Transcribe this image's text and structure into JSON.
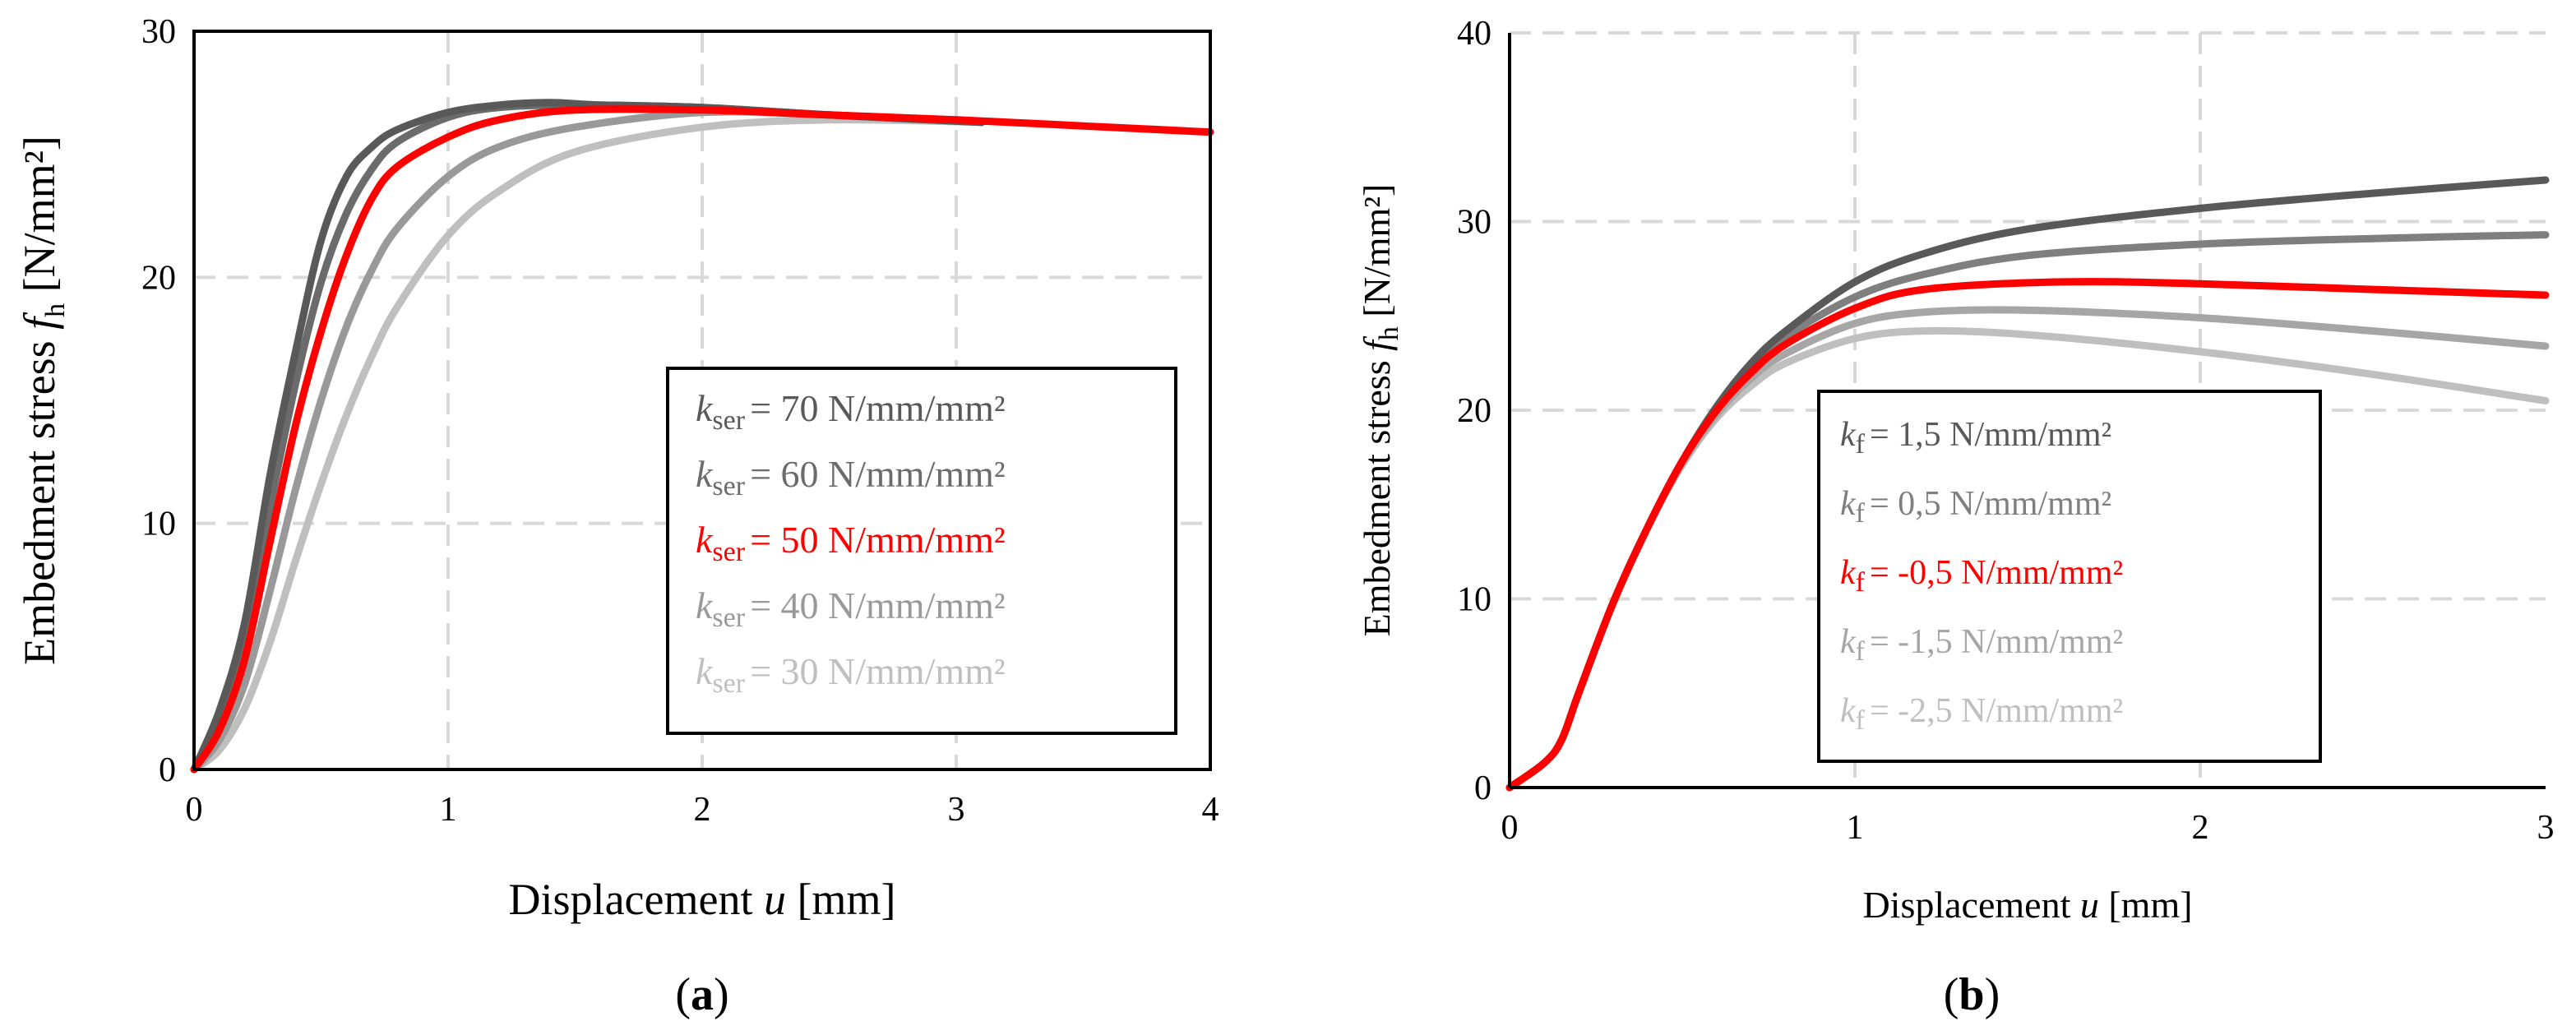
{
  "chart_data": [
    {
      "type": "line",
      "panel_label": "(a)",
      "panel_label_parts": {
        "open": "(",
        "letter": "a",
        "close": ")"
      },
      "xlabel": "Displacement",
      "xlabel_var": "u",
      "xlabel_unit": "[mm]",
      "ylabel": "Embedment stress",
      "ylabel_var": "f",
      "ylabel_sub": "h",
      "ylabel_unit": "[N/mm²]",
      "xlim": [
        0,
        4
      ],
      "ylim": [
        0,
        30
      ],
      "xticks": [
        "0",
        "1",
        "2",
        "3",
        "4"
      ],
      "yticks": [
        "0",
        "10",
        "20",
        "30"
      ],
      "legend_position": "right-middle",
      "series": [
        {
          "name": "k_ser = 70 N/mm/mm²",
          "var": "k",
          "sub": "ser",
          "text": "= 70 N/mm/mm²",
          "color": "#595959",
          "points": [
            [
              0,
              0
            ],
            [
              0.1,
              2.4
            ],
            [
              0.2,
              6
            ],
            [
              0.3,
              12
            ],
            [
              0.4,
              17
            ],
            [
              0.5,
              21.5
            ],
            [
              0.6,
              24.1
            ],
            [
              0.7,
              25.3
            ],
            [
              0.8,
              26
            ],
            [
              1.0,
              26.7
            ],
            [
              1.2,
              27
            ],
            [
              1.4,
              27.1
            ],
            [
              1.6,
              27
            ],
            [
              2.0,
              26.9
            ],
            [
              2.5,
              26.6
            ],
            [
              3.1,
              26.3
            ]
          ]
        },
        {
          "name": "k_ser = 60 N/mm/mm²",
          "var": "k",
          "sub": "ser",
          "text": "= 60 N/mm/mm²",
          "color": "#6b6b6b",
          "points": [
            [
              0,
              0
            ],
            [
              0.1,
              2.0
            ],
            [
              0.2,
              5.2
            ],
            [
              0.3,
              10.7
            ],
            [
              0.4,
              15.7
            ],
            [
              0.5,
              19.8
            ],
            [
              0.6,
              22.6
            ],
            [
              0.7,
              24.4
            ],
            [
              0.8,
              25.5
            ],
            [
              1.0,
              26.5
            ],
            [
              1.2,
              26.9
            ],
            [
              1.5,
              27
            ],
            [
              2.0,
              26.9
            ],
            [
              2.5,
              26.6
            ],
            [
              3.1,
              26.3
            ]
          ]
        },
        {
          "name": "k_ser = 50 N/mm/mm²",
          "var": "k",
          "sub": "ser",
          "text": "= 50 N/mm/mm²",
          "color": "#ff0000",
          "points": [
            [
              0,
              0
            ],
            [
              0.1,
              1.6
            ],
            [
              0.2,
              4.5
            ],
            [
              0.3,
              9.3
            ],
            [
              0.4,
              14
            ],
            [
              0.5,
              17.8
            ],
            [
              0.6,
              20.9
            ],
            [
              0.7,
              23.2
            ],
            [
              0.8,
              24.5
            ],
            [
              1.0,
              25.7
            ],
            [
              1.2,
              26.4
            ],
            [
              1.5,
              26.8
            ],
            [
              2.0,
              26.8
            ],
            [
              2.5,
              26.6
            ],
            [
              3.0,
              26.4
            ],
            [
              3.5,
              26.15
            ],
            [
              4.0,
              25.9
            ]
          ]
        },
        {
          "name": "k_ser = 40 N/mm/mm²",
          "var": "k",
          "sub": "ser",
          "text": "= 40 N/mm/mm²",
          "color": "#999999",
          "points": [
            [
              0,
              0
            ],
            [
              0.1,
              1.2
            ],
            [
              0.2,
              3.5
            ],
            [
              0.3,
              7.3
            ],
            [
              0.4,
              11.4
            ],
            [
              0.5,
              15
            ],
            [
              0.6,
              18
            ],
            [
              0.7,
              20.3
            ],
            [
              0.8,
              22
            ],
            [
              1.0,
              24.1
            ],
            [
              1.2,
              25.3
            ],
            [
              1.5,
              26.1
            ],
            [
              2.0,
              26.7
            ],
            [
              2.5,
              26.6
            ],
            [
              3.1,
              26.3
            ]
          ]
        },
        {
          "name": "k_ser = 30 N/mm/mm²",
          "var": "k",
          "sub": "ser",
          "text": "= 30 N/mm/mm²",
          "color": "#bfbfbf",
          "points": [
            [
              0,
              0
            ],
            [
              0.1,
              0.8
            ],
            [
              0.2,
              2.5
            ],
            [
              0.3,
              5.2
            ],
            [
              0.4,
              8.5
            ],
            [
              0.5,
              11.6
            ],
            [
              0.6,
              14.4
            ],
            [
              0.7,
              16.8
            ],
            [
              0.8,
              18.8
            ],
            [
              1.0,
              21.7
            ],
            [
              1.2,
              23.5
            ],
            [
              1.5,
              25.1
            ],
            [
              2.0,
              26.1
            ],
            [
              2.5,
              26.4
            ],
            [
              3.1,
              26.3
            ]
          ]
        }
      ]
    },
    {
      "type": "line",
      "panel_label": "(b)",
      "panel_label_parts": {
        "open": "(",
        "letter": "b",
        "close": ")"
      },
      "xlabel": "Displacement",
      "xlabel_var": "u",
      "xlabel_unit": "[mm]",
      "ylabel": "Embedment stress",
      "ylabel_var": "f",
      "ylabel_sub": "h",
      "ylabel_unit": "[N/mm²]",
      "xlim": [
        0,
        3
      ],
      "ylim": [
        0,
        40
      ],
      "xticks": [
        "0",
        "1",
        "2",
        "3"
      ],
      "yticks": [
        "0",
        "10",
        "20",
        "30",
        "40"
      ],
      "legend_position": "bottom-middle",
      "series": [
        {
          "name": "k_f = 1,5 N/mm/mm²",
          "var": "k",
          "sub": "f",
          "text": "=  1,5 N/mm/mm²",
          "color": "#595959",
          "points": [
            [
              0,
              0
            ],
            [
              0.1,
              1.3
            ],
            [
              0.15,
              2.5
            ],
            [
              0.2,
              5
            ],
            [
              0.3,
              9.8
            ],
            [
              0.4,
              13.8
            ],
            [
              0.5,
              17.3
            ],
            [
              0.6,
              20.2
            ],
            [
              0.7,
              22.5
            ],
            [
              0.8,
              24.2
            ],
            [
              1.0,
              26.8
            ],
            [
              1.2,
              28.3
            ],
            [
              1.5,
              29.6
            ],
            [
              2.0,
              30.7
            ],
            [
              2.5,
              31.5
            ],
            [
              3.0,
              32.2
            ]
          ]
        },
        {
          "name": "k_f = 0,5 N/mm/mm²",
          "var": "k",
          "sub": "f",
          "text": "=  0,5 N/mm/mm²",
          "color": "#7f7f7f",
          "points": [
            [
              0,
              0
            ],
            [
              0.1,
              1.3
            ],
            [
              0.15,
              2.5
            ],
            [
              0.2,
              5
            ],
            [
              0.3,
              9.8
            ],
            [
              0.4,
              13.8
            ],
            [
              0.5,
              17.3
            ],
            [
              0.6,
              20.1
            ],
            [
              0.7,
              22.3
            ],
            [
              0.8,
              23.9
            ],
            [
              1.0,
              26
            ],
            [
              1.2,
              27.2
            ],
            [
              1.5,
              28.2
            ],
            [
              2.0,
              28.8
            ],
            [
              2.5,
              29.1
            ],
            [
              3.0,
              29.3
            ]
          ]
        },
        {
          "name": "k_f = -0,5 N/mm/mm²",
          "var": "k",
          "sub": "f",
          "text": "= -0,5 N/mm/mm²",
          "color": "#ff0000",
          "points": [
            [
              0,
              0
            ],
            [
              0.1,
              1.3
            ],
            [
              0.15,
              2.5
            ],
            [
              0.2,
              5
            ],
            [
              0.3,
              9.8
            ],
            [
              0.4,
              13.8
            ],
            [
              0.5,
              17.3
            ],
            [
              0.6,
              20
            ],
            [
              0.7,
              22
            ],
            [
              0.8,
              23.5
            ],
            [
              1.0,
              25.4
            ],
            [
              1.2,
              26.4
            ],
            [
              1.6,
              26.8
            ],
            [
              2.0,
              26.7
            ],
            [
              2.5,
              26.4
            ],
            [
              3.0,
              26.1
            ]
          ]
        },
        {
          "name": "k_f = -1,5 N/mm/mm²",
          "var": "k",
          "sub": "f",
          "text": "= -1,5 N/mm/mm²",
          "color": "#a6a6a6",
          "points": [
            [
              0,
              0
            ],
            [
              0.1,
              1.3
            ],
            [
              0.15,
              2.5
            ],
            [
              0.2,
              5
            ],
            [
              0.3,
              9.8
            ],
            [
              0.4,
              13.8
            ],
            [
              0.5,
              17.2
            ],
            [
              0.6,
              19.8
            ],
            [
              0.7,
              21.7
            ],
            [
              0.8,
              23
            ],
            [
              1.0,
              24.6
            ],
            [
              1.2,
              25.2
            ],
            [
              1.5,
              25.3
            ],
            [
              2.0,
              24.9
            ],
            [
              2.5,
              24.2
            ],
            [
              3.0,
              23.4
            ]
          ]
        },
        {
          "name": "k_f = -2,5 N/mm/mm²",
          "var": "k",
          "sub": "f",
          "text": "= -2,5 N/mm/mm²",
          "color": "#bfbfbf",
          "points": [
            [
              0,
              0
            ],
            [
              0.1,
              1.3
            ],
            [
              0.15,
              2.5
            ],
            [
              0.2,
              5
            ],
            [
              0.3,
              9.8
            ],
            [
              0.4,
              13.8
            ],
            [
              0.5,
              17.1
            ],
            [
              0.6,
              19.6
            ],
            [
              0.7,
              21.3
            ],
            [
              0.8,
              22.5
            ],
            [
              1.0,
              23.8
            ],
            [
              1.2,
              24.2
            ],
            [
              1.5,
              24
            ],
            [
              2.0,
              23.1
            ],
            [
              2.5,
              21.9
            ],
            [
              3.0,
              20.5
            ]
          ]
        }
      ]
    }
  ]
}
